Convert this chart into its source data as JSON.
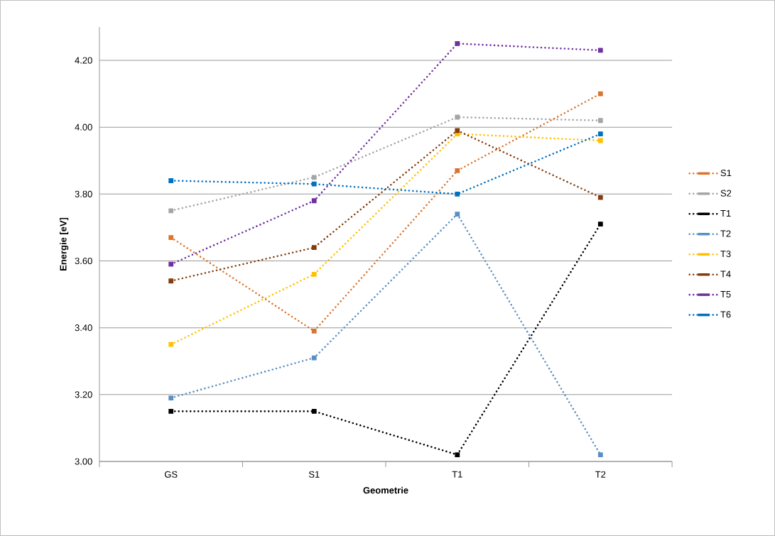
{
  "chart_data": {
    "type": "line",
    "xlabel": "Geometrie",
    "ylabel": "Energie [eV]",
    "categories": [
      "GS",
      "S1",
      "T1",
      "T2"
    ],
    "series": [
      {
        "name": "S1",
        "color": "#d9752f",
        "values": [
          3.67,
          3.39,
          3.87,
          4.1
        ]
      },
      {
        "name": "S2",
        "color": "#a5a5a5",
        "values": [
          3.75,
          3.85,
          4.03,
          4.02
        ]
      },
      {
        "name": "T1",
        "color": "#000000",
        "values": [
          3.15,
          3.15,
          3.02,
          3.71
        ]
      },
      {
        "name": "T2",
        "color": "#5b8fc4",
        "values": [
          3.19,
          3.31,
          3.74,
          3.02
        ]
      },
      {
        "name": "T3",
        "color": "#ffc000",
        "values": [
          3.35,
          3.56,
          3.98,
          3.96
        ]
      },
      {
        "name": "T4",
        "color": "#843c0c",
        "values": [
          3.54,
          3.64,
          3.99,
          3.79
        ]
      },
      {
        "name": "T5",
        "color": "#7030a0",
        "values": [
          3.59,
          3.78,
          4.25,
          4.23
        ]
      },
      {
        "name": "T6",
        "color": "#0070c0",
        "values": [
          3.84,
          3.83,
          3.8,
          3.98
        ]
      }
    ],
    "ylim": [
      3.0,
      4.3
    ],
    "yticks": [
      {
        "value": 3.0,
        "label": "3.00"
      },
      {
        "value": 3.2,
        "label": "3.20"
      },
      {
        "value": 3.4,
        "label": "3.40"
      },
      {
        "value": 3.6,
        "label": "3.60"
      },
      {
        "value": 3.8,
        "label": "3.80"
      },
      {
        "value": 4.0,
        "label": "4.00"
      },
      {
        "value": 4.2,
        "label": "4.20"
      }
    ],
    "grid": "y",
    "legend": "right",
    "marker": "square",
    "line_style": "dotted"
  }
}
